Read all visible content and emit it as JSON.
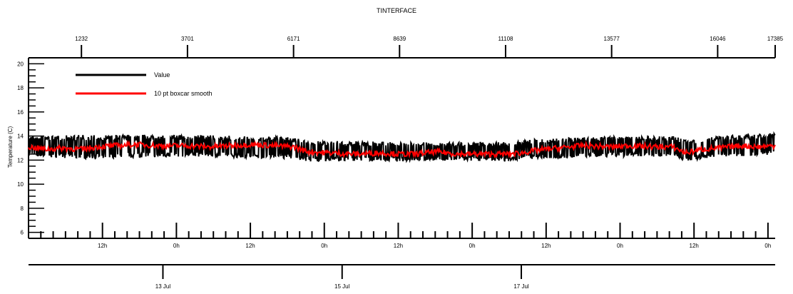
{
  "chart_data": {
    "type": "line",
    "title": "TINTERFACE",
    "ylabel": "Temperature (C)",
    "ylim": [
      5.5,
      20.5
    ],
    "y_ticks": [
      6,
      8,
      10,
      12,
      14,
      16,
      18,
      20
    ],
    "top_axis": {
      "range": [
        0,
        17385
      ],
      "ticks": [
        1232,
        3701,
        6171,
        8639,
        11108,
        13577,
        16046,
        17385
      ]
    },
    "time_axis": {
      "range_hours": [
        0,
        121.17
      ],
      "ticks": [
        {
          "hour": 12,
          "label": "12h"
        },
        {
          "hour": 24,
          "label": "0h"
        },
        {
          "hour": 36,
          "label": "12h"
        },
        {
          "hour": 48,
          "label": "0h"
        },
        {
          "hour": 60,
          "label": "12h"
        },
        {
          "hour": 72,
          "label": "0h"
        },
        {
          "hour": 84,
          "label": "12h"
        },
        {
          "hour": 96,
          "label": "0h"
        },
        {
          "hour": 108,
          "label": "12h"
        },
        {
          "hour": 120,
          "label": "0h"
        }
      ],
      "date_ticks": [
        {
          "hour": 36,
          "label": "13 Jul"
        },
        {
          "hour": 84,
          "label": "15 Jul"
        },
        {
          "hour": 132,
          "label": "17 Jul"
        }
      ]
    },
    "legend_position": "top-left",
    "series": [
      {
        "name": "Value",
        "color": "#000000",
        "band": [
          {
            "x": 0,
            "lo": 12.2,
            "hi": 14.1
          },
          {
            "x": 1232,
            "lo": 12.0,
            "hi": 14.2
          },
          {
            "x": 3701,
            "lo": 12.2,
            "hi": 14.2
          },
          {
            "x": 6171,
            "lo": 12.0,
            "hi": 14.0
          },
          {
            "x": 6500,
            "lo": 11.8,
            "hi": 13.7
          },
          {
            "x": 8639,
            "lo": 11.8,
            "hi": 13.6
          },
          {
            "x": 9000,
            "lo": 11.9,
            "hi": 13.6
          },
          {
            "x": 11108,
            "lo": 11.8,
            "hi": 13.6
          },
          {
            "x": 11700,
            "lo": 12.0,
            "hi": 13.8
          },
          {
            "x": 13577,
            "lo": 12.2,
            "hi": 14.1
          },
          {
            "x": 15000,
            "lo": 12.1,
            "hi": 14.1
          },
          {
            "x": 15300,
            "lo": 11.8,
            "hi": 13.8
          },
          {
            "x": 16046,
            "lo": 12.2,
            "hi": 14.1
          },
          {
            "x": 17385,
            "lo": 12.3,
            "hi": 14.3
          }
        ]
      },
      {
        "name": "10 pt boxcar smooth",
        "color": "#ff0000",
        "x": [
          0,
          400,
          800,
          1232,
          1600,
          2000,
          2500,
          3000,
          3701,
          4200,
          4700,
          5200,
          5700,
          6171,
          6500,
          7000,
          7600,
          8200,
          8639,
          9000,
          9500,
          10000,
          10500,
          11108,
          11500,
          11800,
          12300,
          12900,
          13577,
          14000,
          14600,
          15000,
          15300,
          15700,
          16046,
          16600,
          17000,
          17385
        ],
        "values": [
          13.1,
          12.9,
          13.0,
          12.9,
          13.1,
          13.2,
          13.3,
          13.2,
          13.2,
          13.1,
          13.2,
          13.3,
          13.2,
          13.1,
          12.7,
          12.6,
          12.5,
          12.6,
          12.5,
          12.5,
          12.7,
          12.5,
          12.5,
          12.5,
          12.6,
          12.8,
          13.0,
          13.2,
          13.1,
          13.2,
          13.1,
          13.1,
          12.6,
          12.9,
          13.0,
          13.2,
          13.1,
          13.2
        ]
      }
    ]
  }
}
